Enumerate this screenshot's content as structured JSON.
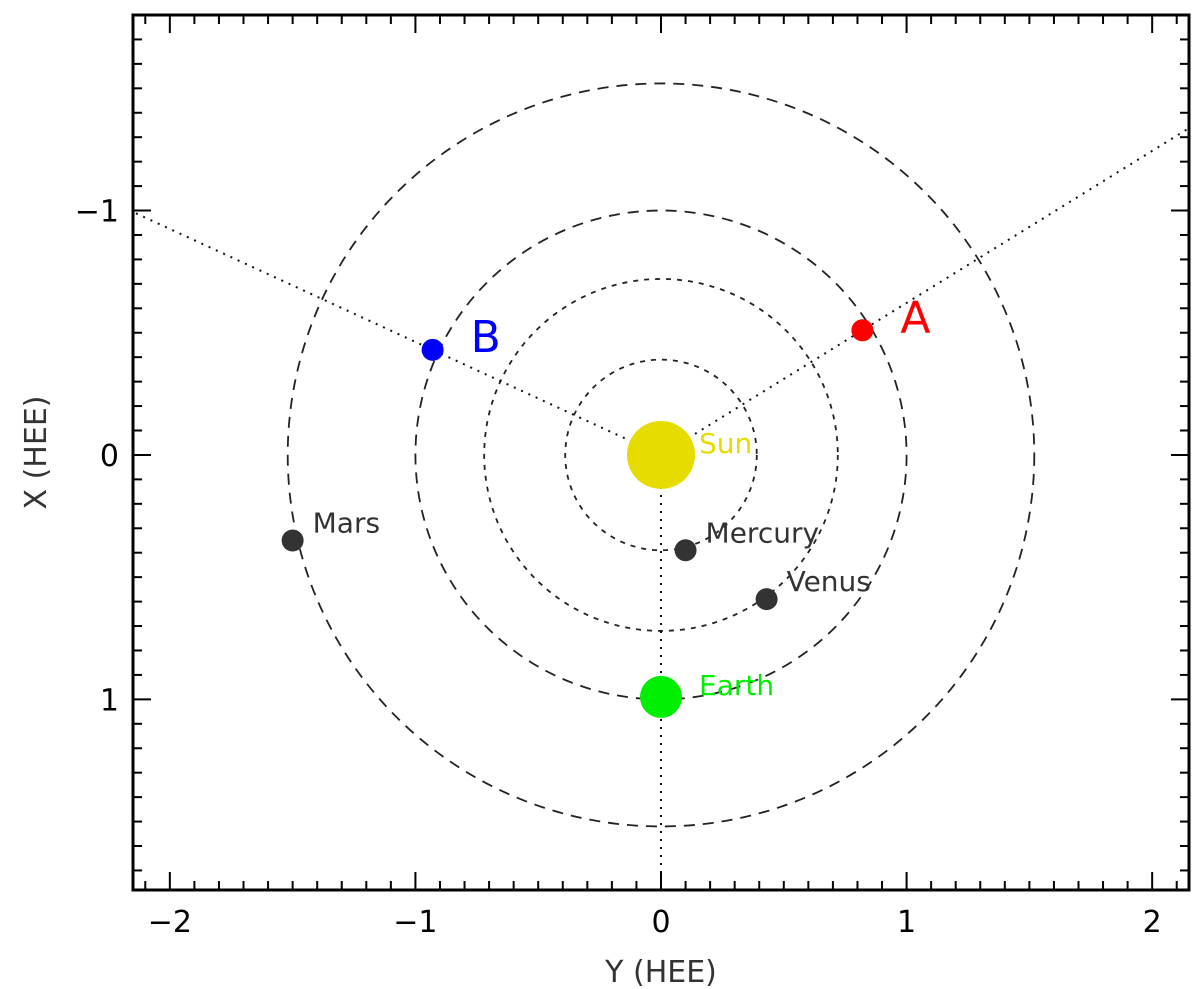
{
  "chart_data": {
    "type": "scatter",
    "title": "",
    "xlabel": "Y (HEE)",
    "ylabel": "X (HEE)",
    "xlim": [
      -2.15,
      2.15
    ],
    "ylim": [
      -1.8,
      1.78
    ],
    "y_axis_inverted": true,
    "x_ticks": [
      {
        "value": -2,
        "label": "−2"
      },
      {
        "value": -1,
        "label": "−1"
      },
      {
        "value": 0,
        "label": "0"
      },
      {
        "value": 1,
        "label": "1"
      },
      {
        "value": 2,
        "label": "2"
      }
    ],
    "y_ticks": [
      {
        "value": -1,
        "label": "−1"
      },
      {
        "value": 0,
        "label": "0"
      },
      {
        "value": 1,
        "label": "1"
      }
    ],
    "orbits": [
      {
        "name": "Mercury orbit",
        "radius": 0.39,
        "dash": "short"
      },
      {
        "name": "Venus orbit",
        "radius": 0.72,
        "dash": "short"
      },
      {
        "name": "Earth orbit",
        "radius": 1.0,
        "dash": "long"
      },
      {
        "name": "Mars orbit",
        "radius": 1.52,
        "dash": "long"
      }
    ],
    "bodies": [
      {
        "id": "sun",
        "label": "Sun",
        "y": 0.0,
        "x": 0.0,
        "color": "#e6dc00",
        "size": "large"
      },
      {
        "id": "earth",
        "label": "Earth",
        "y": 0.0,
        "x": 0.99,
        "color": "#00ee00",
        "size": "medium"
      },
      {
        "id": "mercury",
        "label": "Mercury",
        "y": 0.1,
        "x": 0.39,
        "color": "#333333",
        "size": "small"
      },
      {
        "id": "venus",
        "label": "Venus",
        "y": 0.43,
        "x": 0.59,
        "color": "#333333",
        "size": "small"
      },
      {
        "id": "mars",
        "label": "Mars",
        "y": -1.5,
        "x": 0.35,
        "color": "#333333",
        "size": "small"
      }
    ],
    "spacecraft": [
      {
        "id": "A",
        "label": "A",
        "y": 0.82,
        "x": -0.51,
        "color": "#ff0000"
      },
      {
        "id": "B",
        "label": "B",
        "y": -0.93,
        "x": -0.43,
        "color": "#0000ff"
      }
    ],
    "sightlines": [
      {
        "from": "sun",
        "to": "A",
        "extend_to_edge": true
      },
      {
        "from": "sun",
        "to": "B",
        "extend_to_edge": true
      },
      {
        "from": "sun",
        "to": "earth",
        "extend_to_edge": true
      }
    ]
  }
}
